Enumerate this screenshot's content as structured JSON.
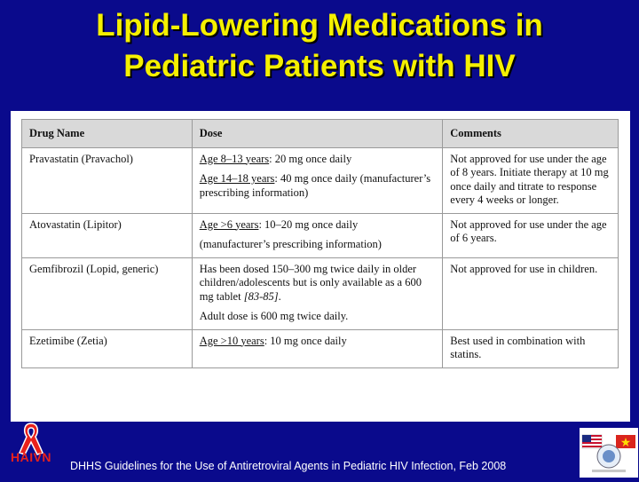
{
  "slide": {
    "title_line1": "Lipid-Lowering Medications in",
    "title_line2": "Pediatric Patients with HIV",
    "footer": "DHHS Guidelines for the Use of Antiretroviral Agents in Pediatric HIV Infection, Feb 2008",
    "logo_text": "HAIVN",
    "colors": {
      "background": "#0a0a8c",
      "title": "#f5f000",
      "logo_red": "#e8211c"
    }
  },
  "table": {
    "headers": [
      "Drug Name",
      "Dose",
      "Comments"
    ],
    "rows": [
      {
        "drug": "Pravastatin (Pravachol)",
        "dose1_label": "Age 8–13 years",
        "dose1_text": ": 20 mg once daily",
        "dose2_label": "Age 14–18 years",
        "dose2_text": ": 40 mg once daily (manufacturer’s prescribing information)",
        "comments": "Not approved for use under the age of 8 years. Initiate therapy at 10 mg once daily and titrate to response every 4 weeks or longer."
      },
      {
        "drug": "Atovastatin (Lipitor)",
        "dose1_label": "Age >6 years",
        "dose1_text": ": 10–20 mg once daily",
        "dose2_text": "(manufacturer’s prescribing information)",
        "comments": "Not approved for use under the age of 6 years."
      },
      {
        "drug": "Gemfibrozil (Lopid, generic)",
        "dose1_text": "Has been dosed 150–300 mg twice daily in older children/adolescents but is only available as a 600 mg tablet ",
        "dose1_ref": "[83-85]",
        "dose1_end": ".",
        "dose2_text": "Adult dose is 600 mg twice daily.",
        "comments": "Not approved for use in children."
      },
      {
        "drug": "Ezetimibe (Zetia)",
        "dose1_label": "Age >10 years",
        "dose1_text": ": 10 mg once daily",
        "comments": "Best used in combination with statins."
      }
    ]
  }
}
